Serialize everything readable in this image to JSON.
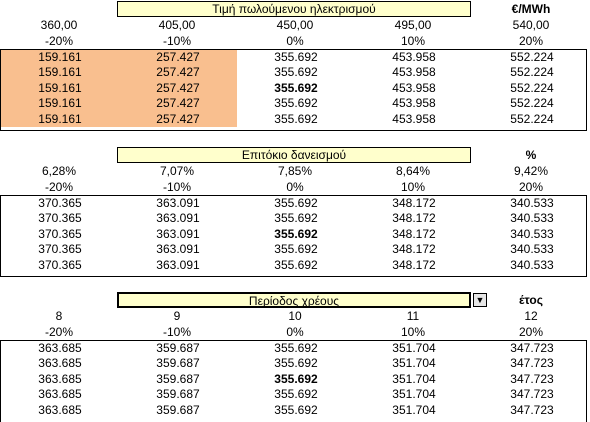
{
  "tables": [
    {
      "title": "Τιμή πωλούμενου ηλεκτρισμού",
      "unit": "€/MWh",
      "headers": [
        "360,00",
        "405,00",
        "450,00",
        "495,00",
        "540,00"
      ],
      "pcts": [
        "-20%",
        "-10%",
        "0%",
        "10%",
        "20%"
      ],
      "rows": [
        [
          "159.161",
          "257.427",
          "355.692",
          "453.958",
          "552.224"
        ],
        [
          "159.161",
          "257.427",
          "355.692",
          "453.958",
          "552.224"
        ],
        [
          "159.161",
          "257.427",
          "355.692",
          "453.958",
          "552.224"
        ],
        [
          "159.161",
          "257.427",
          "355.692",
          "453.958",
          "552.224"
        ],
        [
          "159.161",
          "257.427",
          "355.692",
          "453.958",
          "552.224"
        ]
      ],
      "has_dropdown": false,
      "shaded_cols": [
        0,
        1
      ]
    },
    {
      "title": "Επιτόκιο δανεισμού",
      "unit": "%",
      "headers": [
        "6,28%",
        "7,07%",
        "7,85%",
        "8,64%",
        "9,42%"
      ],
      "pcts": [
        "-20%",
        "-10%",
        "0%",
        "10%",
        "20%"
      ],
      "rows": [
        [
          "370.365",
          "363.091",
          "355.692",
          "348.172",
          "340.533"
        ],
        [
          "370.365",
          "363.091",
          "355.692",
          "348.172",
          "340.533"
        ],
        [
          "370.365",
          "363.091",
          "355.692",
          "348.172",
          "340.533"
        ],
        [
          "370.365",
          "363.091",
          "355.692",
          "348.172",
          "340.533"
        ],
        [
          "370.365",
          "363.091",
          "355.692",
          "348.172",
          "340.533"
        ]
      ],
      "has_dropdown": false,
      "shaded_cols": []
    },
    {
      "title": "Περίοδος χρέους",
      "unit": "έτος",
      "headers": [
        "8",
        "9",
        "10",
        "11",
        "12"
      ],
      "pcts": [
        "-20%",
        "-10%",
        "0%",
        "10%",
        "20%"
      ],
      "rows": [
        [
          "363.685",
          "359.687",
          "355.692",
          "351.704",
          "347.723"
        ],
        [
          "363.685",
          "359.687",
          "355.692",
          "351.704",
          "347.723"
        ],
        [
          "363.685",
          "359.687",
          "355.692",
          "351.704",
          "347.723"
        ],
        [
          "363.685",
          "359.687",
          "355.692",
          "351.704",
          "347.723"
        ],
        [
          "363.685",
          "359.687",
          "355.692",
          "351.704",
          "347.723"
        ]
      ],
      "has_dropdown": true,
      "shaded_cols": []
    }
  ],
  "colors": {
    "title_fill": "#ffffcc",
    "shade_fill": "#f9bf8f",
    "border": "#000000"
  },
  "icons": {
    "dropdown": "chevron-down-icon"
  }
}
